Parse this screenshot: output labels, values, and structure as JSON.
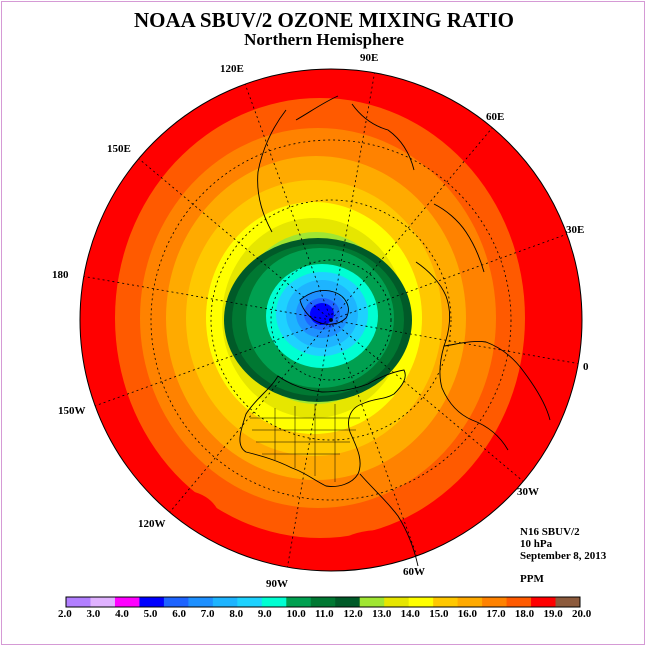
{
  "title": "NOAA SBUV/2 OZONE MIXING RATIO",
  "subtitle": "Northern Hemisphere",
  "longitude_labels": [
    "90E",
    "60E",
    "30E",
    "0",
    "30W",
    "60W",
    "90W",
    "120W",
    "150W",
    "180",
    "150E",
    "120E"
  ],
  "info": {
    "instrument": "N16 SBUV/2",
    "level": "10 hPa",
    "date": "September 8, 2013",
    "units": "PPM"
  },
  "colorbar": {
    "labels": [
      "2.0",
      "3.0",
      "4.0",
      "5.0",
      "6.0",
      "7.0",
      "8.0",
      "9.0",
      "10.0",
      "11.0",
      "12.0",
      "13.0",
      "14.0",
      "15.0",
      "16.0",
      "17.0",
      "18.0",
      "19.0",
      "20.0"
    ],
    "colors": [
      "#b27fff",
      "#e0b2ff",
      "#ff00ff",
      "#0000ff",
      "#1e64ff",
      "#1e90ff",
      "#1eb4ff",
      "#1ed2ff",
      "#00ffd2",
      "#00a050",
      "#007832",
      "#005a28",
      "#a0e632",
      "#e6e600",
      "#ffff00",
      "#ffc800",
      "#ffaa00",
      "#ff8200",
      "#ff5a00",
      "#ff0000",
      "#8c5a3c"
    ]
  },
  "map_colors": {
    "outer": "#ff0000",
    "ring1": "#ff5a00",
    "ring2": "#ff8200",
    "ring3": "#ffaa00",
    "ring4": "#ffc800",
    "ring5": "#ffff00",
    "ring6": "#e6e600",
    "ring7": "#a0e632",
    "ring8": "#005a28",
    "ring9": "#007832",
    "ring10": "#00a050",
    "ring11": "#00ffd2",
    "ring12": "#1ed2ff",
    "ring13": "#1eb4ff",
    "ring14": "#1e90ff",
    "ring15": "#1e64ff",
    "core": "#0000ff"
  }
}
